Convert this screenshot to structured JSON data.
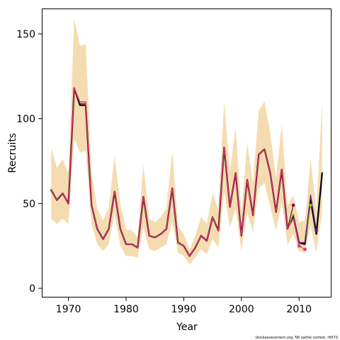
{
  "chart_data": {
    "type": "line",
    "title": "",
    "xlabel": "Year",
    "ylabel": "Recruits",
    "xlim": [
      1965.5,
      2015.5
    ],
    "ylim": [
      -5,
      165
    ],
    "xticks": [
      1970,
      1980,
      1990,
      2000,
      2010
    ],
    "yticks": [
      0,
      50,
      100,
      150
    ],
    "grid": false,
    "legend": "none",
    "credit": "stockassessment.org, NS saithe cortest, r6573",
    "colors": {
      "band": "#f5dcb0",
      "main": "#000000",
      "retro1": "#e8356f",
      "retro2": "#8b0a59",
      "retro3": "#7dc40f",
      "retro4": "#5f1a8c"
    },
    "band": {
      "x": [
        1967,
        1968,
        1969,
        1970,
        1971,
        1972,
        1973,
        1974,
        1975,
        1976,
        1977,
        1978,
        1979,
        1980,
        1981,
        1982,
        1983,
        1984,
        1985,
        1986,
        1987,
        1988,
        1989,
        1990,
        1991,
        1992,
        1993,
        1994,
        1995,
        1996,
        1997,
        1998,
        1999,
        2000,
        2001,
        2002,
        2003,
        2004,
        2005,
        2006,
        2007,
        2008,
        2009,
        2010,
        2011,
        2012,
        2013,
        2014
      ],
      "lower": [
        41,
        38,
        41,
        38,
        88,
        80,
        81,
        38,
        26,
        22,
        26,
        44,
        25,
        19,
        19,
        18,
        36,
        23,
        22,
        24,
        26,
        39,
        21,
        19,
        14,
        18,
        23,
        20,
        29,
        24,
        57,
        36,
        47,
        22,
        45,
        33,
        59,
        62,
        48,
        34,
        51,
        26,
        32,
        22,
        21,
        37,
        21,
        45
      ],
      "upper": [
        83,
        71,
        76,
        68,
        159,
        143,
        144,
        69,
        47,
        40,
        48,
        78,
        50,
        35,
        34,
        30,
        73,
        41,
        39,
        42,
        47,
        81,
        37,
        32,
        23,
        31,
        42,
        38,
        56,
        46,
        110,
        69,
        95,
        44,
        86,
        62,
        105,
        110,
        92,
        65,
        97,
        49,
        55,
        39,
        40,
        76,
        46,
        110
      ]
    },
    "series": [
      {
        "x": [
          1967,
          1968,
          1969,
          1970,
          1971,
          1972,
          1973,
          1974,
          1975,
          1976,
          1977,
          1978,
          1979,
          1980,
          1981,
          1982,
          1983,
          1984,
          1985,
          1986,
          1987,
          1988,
          1989,
          1990,
          1991,
          1992,
          1993,
          1994,
          1995,
          1996,
          1997,
          1998,
          1999,
          2000,
          2001,
          2002,
          2003,
          2004,
          2005,
          2006,
          2007,
          2008,
          2009,
          2010,
          2011,
          2012,
          2013,
          2014
        ],
        "y": [
          58,
          52,
          56,
          50,
          118,
          108,
          108,
          49,
          35,
          29,
          35,
          57,
          35,
          26,
          26,
          24,
          54,
          31,
          30,
          32,
          35,
          59,
          27,
          25,
          19,
          24,
          31,
          28,
          42,
          34,
          83,
          48,
          68,
          31,
          64,
          43,
          79,
          82,
          68,
          45,
          70,
          35,
          43,
          27,
          26,
          52,
          32,
          68
        ],
        "color": "main",
        "width": 2.2
      },
      {
        "x": [
          1967,
          1968,
          1969,
          1970,
          1971,
          1972,
          1973,
          1974,
          1975,
          1976,
          1977,
          1978,
          1979,
          1980,
          1981,
          1982,
          1983,
          1984,
          1985,
          1986,
          1987,
          1988,
          1989,
          1990,
          1991,
          1992,
          1993,
          1994,
          1995,
          1996,
          1997,
          1998,
          1999,
          2000,
          2001,
          2002,
          2003,
          2004,
          2005,
          2006,
          2007,
          2008,
          2009,
          2010,
          2011
        ],
        "y": [
          58,
          52,
          56,
          50,
          118,
          110,
          110,
          49,
          35,
          29,
          35,
          57,
          35,
          26,
          26,
          24,
          54,
          31,
          30,
          32,
          35,
          59,
          27,
          25,
          19,
          24,
          31,
          28,
          42,
          34,
          83,
          48,
          68,
          31,
          64,
          43,
          79,
          82,
          68,
          45,
          70,
          35,
          41,
          25,
          23
        ],
        "color": "retro1",
        "width": 1.3
      },
      {
        "x": [
          1967,
          1968,
          1969,
          1970,
          1971,
          1972,
          1973,
          1974,
          1975,
          1976,
          1977,
          1978,
          1979,
          1980,
          1981,
          1982,
          1983,
          1984,
          1985,
          1986,
          1987,
          1988,
          1989,
          1990,
          1991,
          1992,
          1993,
          1994,
          1995,
          1996,
          1997,
          1998,
          1999,
          2000,
          2001,
          2002,
          2003,
          2004,
          2005,
          2006,
          2007,
          2008,
          2009
        ],
        "y": [
          58,
          52,
          56,
          50,
          118,
          109,
          109,
          49,
          35,
          29,
          35,
          57,
          35,
          26,
          26,
          24,
          54,
          31,
          30,
          32,
          35,
          59,
          27,
          25,
          19,
          24,
          31,
          28,
          42,
          34,
          83,
          48,
          68,
          31,
          64,
          43,
          79,
          82,
          68,
          45,
          70,
          35,
          49
        ],
        "color": "retro2",
        "width": 1.3
      },
      {
        "x": [
          2008,
          2009,
          2010,
          2011,
          2012
        ],
        "y": [
          35,
          44,
          27,
          27,
          49
        ],
        "color": "retro3",
        "width": 1.3
      },
      {
        "x": [
          2009,
          2010,
          2011,
          2012,
          2013
        ],
        "y": [
          43,
          27,
          27,
          55,
          34
        ],
        "color": "retro4",
        "width": 1.3
      }
    ],
    "endpoints": [
      {
        "x": 2010,
        "y": 25,
        "color": "retro1"
      },
      {
        "x": 2011,
        "y": 23,
        "color": "retro1"
      },
      {
        "x": 2009,
        "y": 49,
        "color": "retro2"
      },
      {
        "x": 2012,
        "y": 49,
        "color": "retro3"
      },
      {
        "x": 2013,
        "y": 34,
        "color": "retro4"
      }
    ]
  }
}
